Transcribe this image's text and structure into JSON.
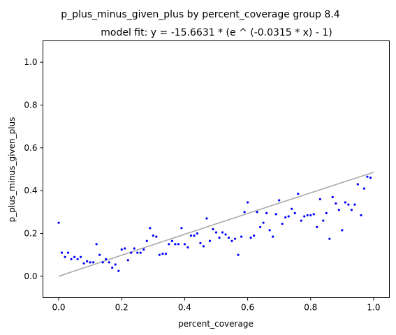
{
  "chart_data": {
    "type": "scatter",
    "title": "p_plus_minus_given_plus by percent_coverage group 8.4",
    "subtitle": "model fit: y = -15.6631 * (e ^ (-0.0315 * x) - 1)",
    "xlabel": "percent_coverage",
    "ylabel": "p_plus_minus_given_plus",
    "xlim": [
      -0.05,
      1.05
    ],
    "ylim": [
      -0.1,
      1.1
    ],
    "xticks": [
      0.0,
      0.2,
      0.4,
      0.6,
      0.8,
      1.0
    ],
    "xtick_labels": [
      "0.0",
      "0.2",
      "0.4",
      "0.6",
      "0.8",
      "1.0"
    ],
    "yticks": [
      0.0,
      0.2,
      0.4,
      0.6,
      0.8,
      1.0
    ],
    "ytick_labels": [
      "0.0",
      "0.2",
      "0.4",
      "0.6",
      "0.8",
      "1.0"
    ],
    "grid": false,
    "point_color": "#0000ff",
    "fit_color": "#aaaaaa",
    "series": [
      {
        "kind": "points",
        "x": [
          0.0,
          0.01,
          0.02,
          0.03,
          0.04,
          0.05,
          0.06,
          0.07,
          0.08,
          0.09,
          0.1,
          0.11,
          0.12,
          0.13,
          0.14,
          0.15,
          0.16,
          0.17,
          0.18,
          0.19,
          0.2,
          0.21,
          0.22,
          0.23,
          0.24,
          0.25,
          0.26,
          0.27,
          0.28,
          0.29,
          0.3,
          0.31,
          0.32,
          0.33,
          0.34,
          0.35,
          0.36,
          0.37,
          0.38,
          0.39,
          0.4,
          0.41,
          0.42,
          0.43,
          0.44,
          0.45,
          0.46,
          0.47,
          0.48,
          0.49,
          0.5,
          0.51,
          0.52,
          0.53,
          0.54,
          0.55,
          0.56,
          0.57,
          0.58,
          0.59,
          0.6,
          0.61,
          0.62,
          0.63,
          0.64,
          0.65,
          0.66,
          0.67,
          0.68,
          0.69,
          0.7,
          0.71,
          0.72,
          0.73,
          0.74,
          0.75,
          0.76,
          0.77,
          0.78,
          0.79,
          0.8,
          0.81,
          0.82,
          0.83,
          0.84,
          0.85,
          0.86,
          0.87,
          0.88,
          0.89,
          0.9,
          0.91,
          0.92,
          0.93,
          0.94,
          0.95,
          0.96,
          0.97,
          0.98,
          0.99
        ],
        "y": [
          0.25,
          0.11,
          0.09,
          0.11,
          0.08,
          0.09,
          0.08,
          0.09,
          0.06,
          0.07,
          0.065,
          0.065,
          0.15,
          0.1,
          0.065,
          0.08,
          0.065,
          0.04,
          0.055,
          0.025,
          0.125,
          0.13,
          0.075,
          0.11,
          0.13,
          0.11,
          0.11,
          0.125,
          0.165,
          0.225,
          0.19,
          0.185,
          0.1,
          0.105,
          0.105,
          0.15,
          0.165,
          0.15,
          0.15,
          0.225,
          0.15,
          0.135,
          0.19,
          0.19,
          0.2,
          0.155,
          0.14,
          0.27,
          0.165,
          0.22,
          0.205,
          0.18,
          0.205,
          0.195,
          0.18,
          0.165,
          0.175,
          0.1,
          0.185,
          0.3,
          0.345,
          0.18,
          0.19,
          0.3,
          0.23,
          0.25,
          0.295,
          0.215,
          0.185,
          0.29,
          0.355,
          0.245,
          0.275,
          0.28,
          0.315,
          0.295,
          0.385,
          0.26,
          0.28,
          0.285,
          0.285,
          0.29,
          0.23,
          0.36,
          0.26,
          0.295,
          0.175,
          0.37,
          0.34,
          0.31,
          0.215,
          0.345,
          0.335,
          0.31,
          0.335,
          0.43,
          0.285,
          0.41,
          0.465,
          0.46
        ]
      },
      {
        "kind": "fit",
        "equation": "y = -15.6631 * (e ^ (-0.0315 * x) - 1)",
        "a": -15.6631,
        "b": -0.0315
      }
    ]
  }
}
